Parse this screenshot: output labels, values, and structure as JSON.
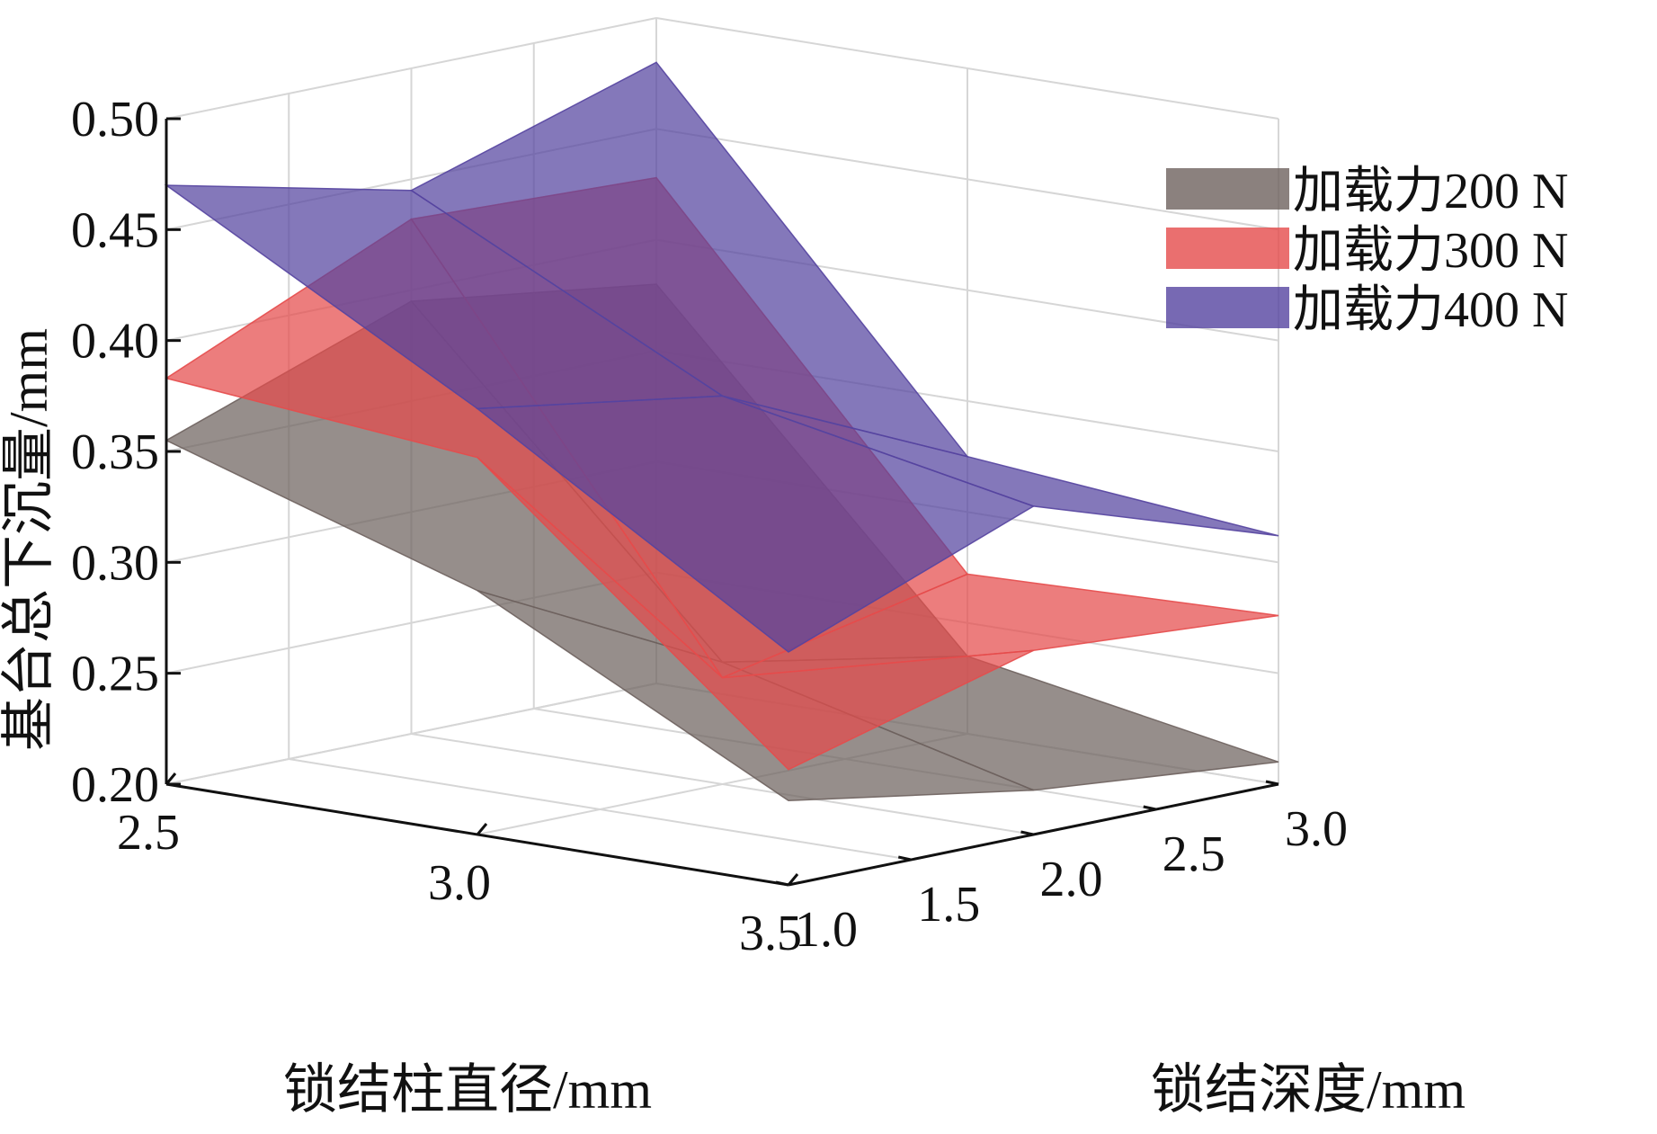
{
  "chart_data": {
    "type": "surface3d",
    "title": "",
    "xlabel": "锁结柱直径/mm",
    "ylabel": "锁结深度/mm",
    "zlabel": "基台总下沉量/mm",
    "x_ticks": [
      "2.5",
      "3.0",
      "3.5"
    ],
    "y_ticks": [
      "1.0",
      "1.5",
      "2.0",
      "2.5",
      "3.0"
    ],
    "z_ticks": [
      "0.20",
      "0.25",
      "0.30",
      "0.35",
      "0.40",
      "0.45",
      "0.50"
    ],
    "xlim": [
      2.5,
      3.5
    ],
    "ylim": [
      1.0,
      3.0
    ],
    "zlim": [
      0.2,
      0.5
    ],
    "grid": true,
    "legend_position": "top-right",
    "x": [
      2.5,
      3.0,
      3.5
    ],
    "y": [
      1.0,
      2.0,
      3.0
    ],
    "series": [
      {
        "name": "加载力200 N",
        "color": "#6e625e",
        "z": [
          [
            0.355,
            0.395,
            0.38
          ],
          [
            0.31,
            0.255,
            0.235
          ],
          [
            0.238,
            0.22,
            0.21
          ]
        ]
      },
      {
        "name": "加载力300 N",
        "color": "#e54b4b",
        "z": [
          [
            0.383,
            0.432,
            0.428
          ],
          [
            0.37,
            0.248,
            0.272
          ],
          [
            0.252,
            0.283,
            0.276
          ]
        ]
      },
      {
        "name": "加载力400 N",
        "color": "#5544a0",
        "z": [
          [
            0.47,
            0.445,
            0.48
          ],
          [
            0.392,
            0.375,
            0.325
          ],
          [
            0.305,
            0.348,
            0.312
          ]
        ]
      }
    ]
  }
}
